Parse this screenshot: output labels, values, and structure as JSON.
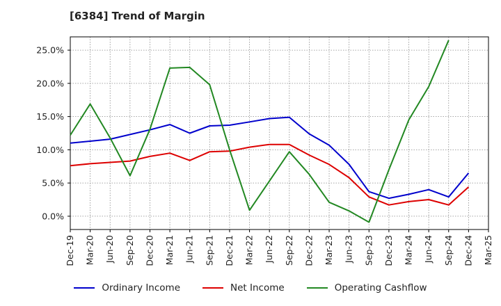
{
  "page": {
    "title": "[6384]  Trend of Margin"
  },
  "colors": {
    "grid": "#888888",
    "ordinary": "#0000CC",
    "net": "#DD0000",
    "cashflow": "#228822"
  },
  "chart_data": {
    "type": "line",
    "title": "[6384]  Trend of Margin",
    "xlabel": "",
    "ylabel": "",
    "y_tick_format": "percent-1dp",
    "ylim": [
      -2.0,
      27.0
    ],
    "y_ticks": [
      0.0,
      5.0,
      10.0,
      15.0,
      20.0,
      25.0
    ],
    "y_tick_labels": [
      "0.0%",
      "5.0%",
      "10.0%",
      "15.0%",
      "20.0%",
      "25.0%"
    ],
    "x_tick_labels": [
      "Dec-19",
      "Mar-20",
      "Jun-20",
      "Sep-20",
      "Dec-20",
      "Mar-21",
      "Jun-21",
      "Sep-21",
      "Dec-21",
      "Mar-22",
      "Jun-22",
      "Sep-22",
      "Dec-22",
      "Mar-23",
      "Jun-23",
      "Sep-23",
      "Dec-23",
      "Mar-24",
      "Jun-24",
      "Sep-24",
      "Dec-24",
      "Mar-25"
    ],
    "grid": true,
    "legend_position": "bottom",
    "series": [
      {
        "name": "Ordinary Income",
        "color": "#0000CC",
        "values": [
          11.0,
          11.3,
          11.6,
          12.3,
          13.0,
          13.8,
          12.5,
          13.6,
          13.7,
          14.2,
          14.7,
          14.9,
          12.4,
          10.7,
          7.8,
          3.7,
          2.7,
          3.3,
          4.0,
          2.9,
          6.5,
          null
        ]
      },
      {
        "name": "Net Income",
        "color": "#DD0000",
        "values": [
          7.6,
          7.9,
          8.1,
          8.3,
          9.0,
          9.5,
          8.4,
          9.7,
          9.8,
          10.4,
          10.8,
          10.8,
          9.2,
          7.8,
          5.8,
          2.9,
          1.7,
          2.2,
          2.5,
          1.7,
          4.4,
          null
        ]
      },
      {
        "name": "Operating Cashflow",
        "color": "#228822",
        "values": [
          12.2,
          16.9,
          11.8,
          6.1,
          13.1,
          22.3,
          22.4,
          19.8,
          10.0,
          0.9,
          5.3,
          9.7,
          6.3,
          2.1,
          0.8,
          -0.9,
          7.0,
          14.5,
          19.5,
          26.5,
          null,
          null
        ]
      }
    ]
  }
}
